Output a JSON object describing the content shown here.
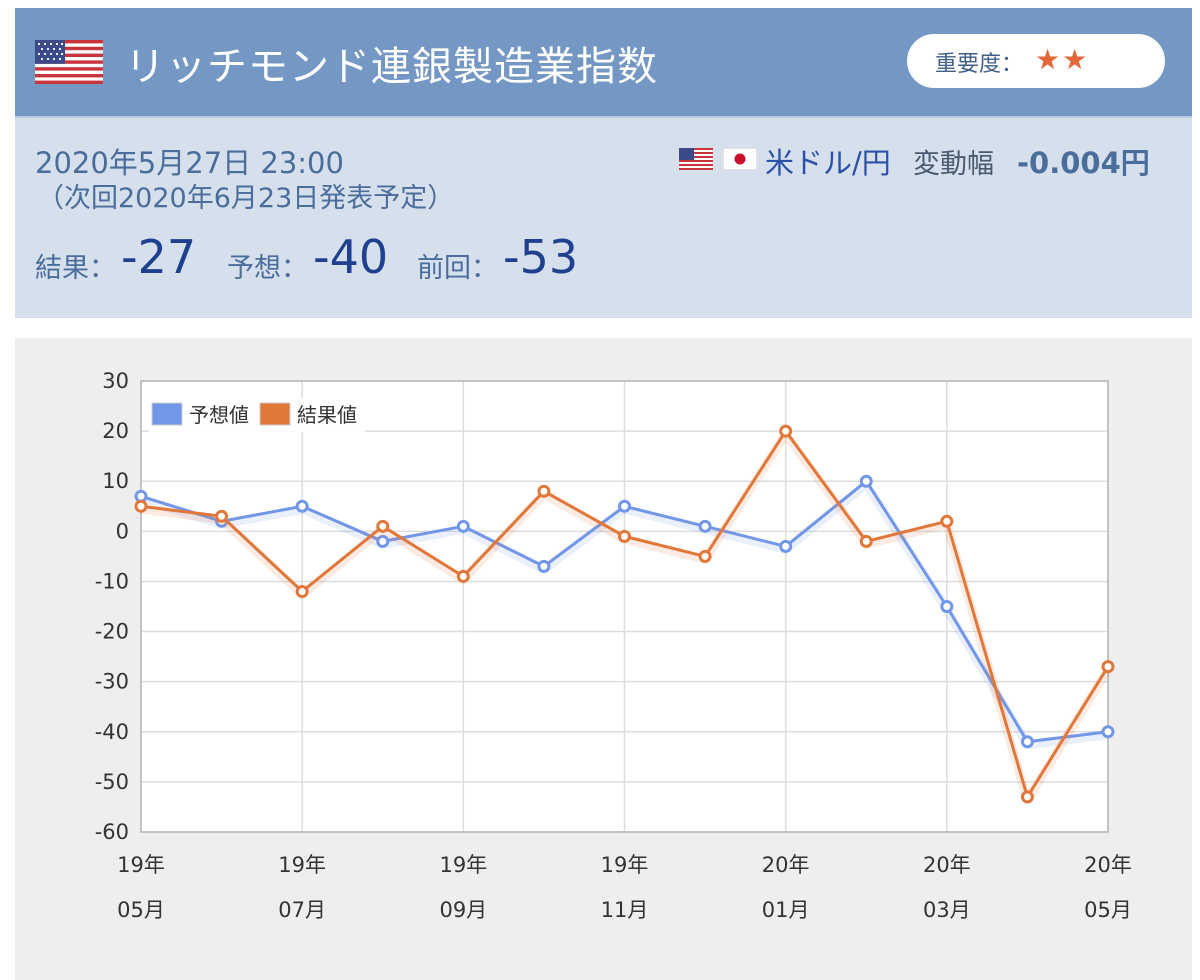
{
  "header": {
    "title": "リッチモンド連銀製造業指数",
    "importance_label": "重要度：",
    "importance_stars": "★★",
    "importance_level": 2
  },
  "release": {
    "datetime": "2020年5月27日 23:00",
    "next": "（次回2020年6月23日発表予定）",
    "pair": "米ドル/円",
    "range_label": "変動幅",
    "range_value": "-0.004円",
    "result_label": "結果：",
    "result_value": "-27",
    "forecast_label": "予想：",
    "forecast_value": "-40",
    "previous_label": "前回：",
    "previous_value": "-53"
  },
  "colors": {
    "header_bg": "#7497c4",
    "info_bg": "#d5e0ec",
    "forecast": "#7296e8",
    "actual": "#e2773a"
  },
  "chart_data": {
    "type": "line",
    "x": [
      "2019-05",
      "2019-06",
      "2019-07",
      "2019-08",
      "2019-09",
      "2019-10",
      "2019-11",
      "2019-12",
      "2020-01",
      "2020-02",
      "2020-03",
      "2020-04",
      "2020-05"
    ],
    "tick_labels": [
      {
        "index": 0,
        "year": "19年",
        "month": "05月"
      },
      {
        "index": 2,
        "year": "19年",
        "month": "07月"
      },
      {
        "index": 4,
        "year": "19年",
        "month": "09月"
      },
      {
        "index": 6,
        "year": "19年",
        "month": "11月"
      },
      {
        "index": 8,
        "year": "20年",
        "month": "01月"
      },
      {
        "index": 10,
        "year": "20年",
        "month": "03月"
      },
      {
        "index": 12,
        "year": "20年",
        "month": "05月"
      }
    ],
    "ylim": [
      -60,
      30
    ],
    "yticks": [
      30,
      20,
      10,
      0,
      -10,
      -20,
      -30,
      -40,
      -50,
      -60
    ],
    "grid": true,
    "legend_position": "top-left",
    "series": [
      {
        "name": "予想値",
        "color": "#7296e8",
        "values": [
          7,
          2,
          5,
          -2,
          1,
          -7,
          5,
          1,
          -3,
          10,
          -15,
          -42,
          -40
        ]
      },
      {
        "name": "結果値",
        "color": "#e2773a",
        "values": [
          5,
          3,
          -12,
          1,
          -9,
          8,
          -1,
          -5,
          20,
          -2,
          2,
          -53,
          -27
        ]
      }
    ]
  }
}
